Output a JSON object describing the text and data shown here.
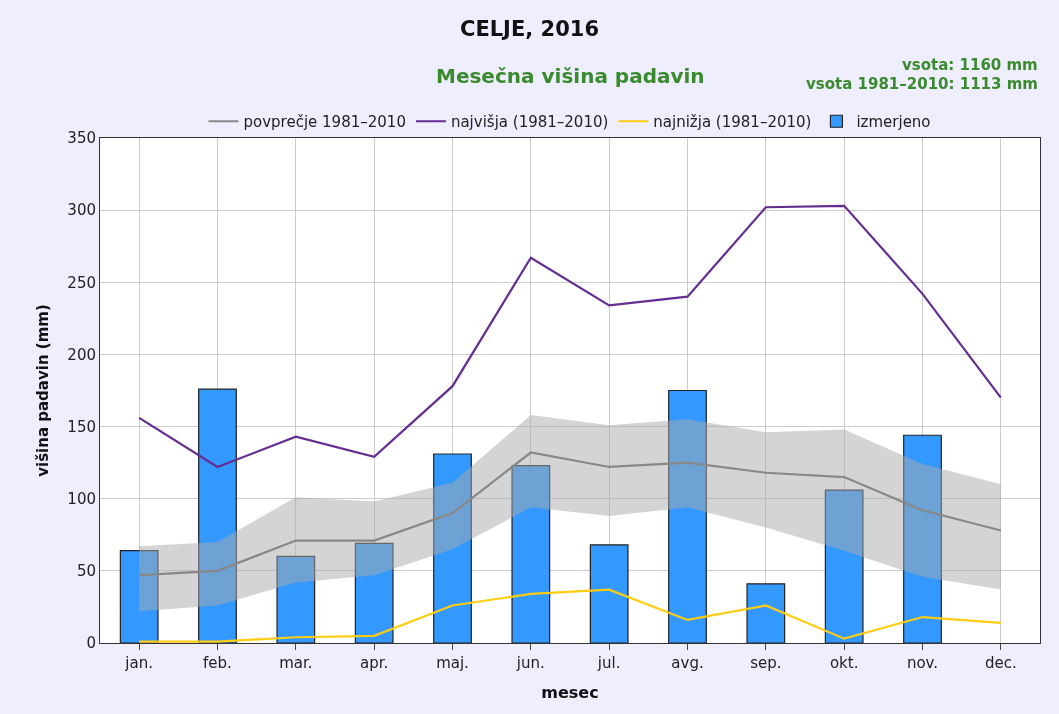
{
  "chart_data": {
    "type": "bar",
    "title": "CELJE, 2016",
    "subtitle": "Mesečna višina padavin",
    "xlabel": "mesec",
    "ylabel": "višina padavin (mm)",
    "annotations": [
      "vsota: 1160 mm",
      "vsota 1981–2010: 1113 mm"
    ],
    "categories": [
      "jan.",
      "feb.",
      "mar.",
      "apr.",
      "maj.",
      "jun.",
      "jul.",
      "avg.",
      "sep.",
      "okt.",
      "nov.",
      "dec."
    ],
    "series": [
      {
        "name": "povprečje 1981–2010",
        "type": "line",
        "color": "#888888",
        "values": [
          47,
          50,
          71,
          71,
          90,
          132,
          122,
          125,
          118,
          115,
          92,
          78
        ],
        "lower": [
          22,
          26,
          42,
          47,
          65,
          94,
          88,
          94,
          80,
          64,
          46,
          37
        ],
        "upper": [
          67,
          70,
          101,
          98,
          111,
          158,
          151,
          155,
          146,
          148,
          124,
          110
        ]
      },
      {
        "name": "najvišja (1981–2010)",
        "type": "line",
        "color": "#662d91",
        "values": [
          156,
          122,
          143,
          129,
          178,
          267,
          234,
          240,
          302,
          303,
          242,
          170
        ]
      },
      {
        "name": "najnižja (1981–2010)",
        "type": "line",
        "color": "#ffcc11",
        "values": [
          1,
          1,
          4,
          5,
          26,
          34,
          37,
          16,
          26,
          3,
          18,
          14
        ]
      },
      {
        "name": "izmerjeno",
        "color": "#3399ff",
        "values": [
          64,
          176,
          60,
          69,
          131,
          123,
          68,
          175,
          41,
          106,
          144,
          null
        ]
      }
    ],
    "ylim": [
      0,
      350
    ],
    "yticks": [
      0,
      50,
      100,
      150,
      200,
      250,
      300,
      350
    ],
    "grid": true,
    "legend": "top",
    "marker": "none",
    "line_style": "solid"
  }
}
